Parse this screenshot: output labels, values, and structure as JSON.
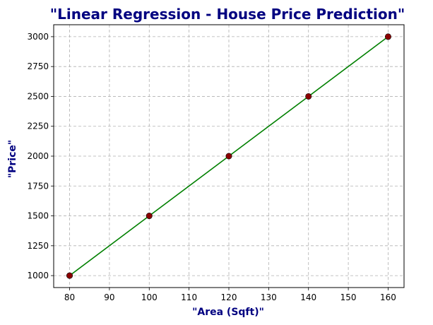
{
  "chart_data": {
    "type": "scatter",
    "title": "\"Linear Regression - House Price Prediction\"",
    "xlabel": "\"Area (Sqft)\"",
    "ylabel": "\"Price\"",
    "xlim": [
      76,
      164
    ],
    "ylim": [
      900,
      3100
    ],
    "xticks": [
      80,
      90,
      100,
      110,
      120,
      130,
      140,
      150,
      160
    ],
    "yticks": [
      1000,
      1250,
      1500,
      1750,
      2000,
      2250,
      2500,
      2750,
      3000
    ],
    "grid": true,
    "series": [
      {
        "kind": "scatter",
        "x": [
          80,
          100,
          120,
          140,
          160
        ],
        "y": [
          1000,
          1500,
          2000,
          2500,
          3000
        ],
        "color": "#8b0000",
        "edge_color": "#000000"
      },
      {
        "kind": "line",
        "x": [
          80,
          100,
          120,
          140,
          160
        ],
        "y": [
          1000,
          1500,
          2000,
          2500,
          3000
        ],
        "color": "#008000"
      }
    ],
    "title_color": "#000080",
    "label_color": "#000080"
  }
}
